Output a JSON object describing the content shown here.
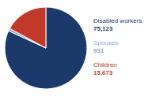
{
  "chart_data": {
    "type": "pie",
    "categories": [
      "Disabled workers",
      "Spouses",
      "Children"
    ],
    "values": [
      75123,
      931,
      15673
    ],
    "value_labels": [
      "75,123",
      "931",
      "15,673"
    ],
    "colors": [
      "#1b3a6b",
      "#8fa8c8",
      "#c0392b"
    ],
    "data_labels": true
  }
}
